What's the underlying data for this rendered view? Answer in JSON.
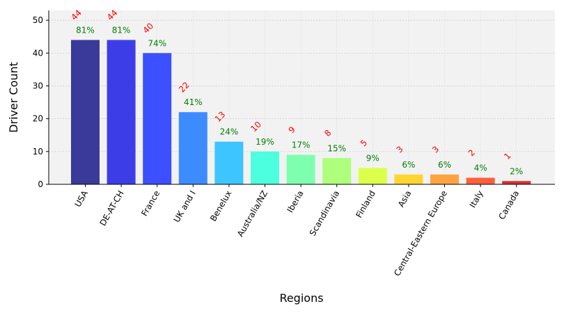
{
  "chart_data": {
    "type": "bar",
    "categories": [
      "USA",
      "DE-AT-CH",
      "France",
      "UK and I",
      "Benelux",
      "Australia/NZ",
      "Iberia",
      "Scandinavia",
      "Finland",
      "Asia",
      "Central-Eastern Europe",
      "Italy",
      "Canada"
    ],
    "values": [
      44,
      44,
      40,
      22,
      13,
      10,
      9,
      8,
      5,
      3,
      3,
      2,
      1
    ],
    "count_labels": [
      "44",
      "44",
      "40",
      "22",
      "13",
      "10",
      "9",
      "8",
      "5",
      "3",
      "3",
      "2",
      "1"
    ],
    "percent_labels": [
      "81%",
      "81%",
      "74%",
      "41%",
      "24%",
      "19%",
      "17%",
      "15%",
      "9%",
      "6%",
      "6%",
      "4%",
      "2%"
    ],
    "bar_colors": [
      "#3a3a9a",
      "#3d3de8",
      "#3c50ff",
      "#3d8cff",
      "#3dc5ff",
      "#4cffdf",
      "#7effaf",
      "#adff7c",
      "#dcff4b",
      "#ffd533",
      "#ffa340",
      "#ff5f3d",
      "#d93030"
    ],
    "count_label_color": "#ff0000",
    "percent_label_color": "#008000",
    "xlabel": "Regions",
    "ylabel": "Driver Count",
    "ylim": [
      0,
      53
    ],
    "yticks": [
      0,
      10,
      20,
      30,
      40,
      50
    ],
    "ytick_labels": [
      "0",
      "10",
      "20",
      "30",
      "40",
      "50"
    ],
    "grid": true,
    "plot_background": "#f2f2f2"
  }
}
